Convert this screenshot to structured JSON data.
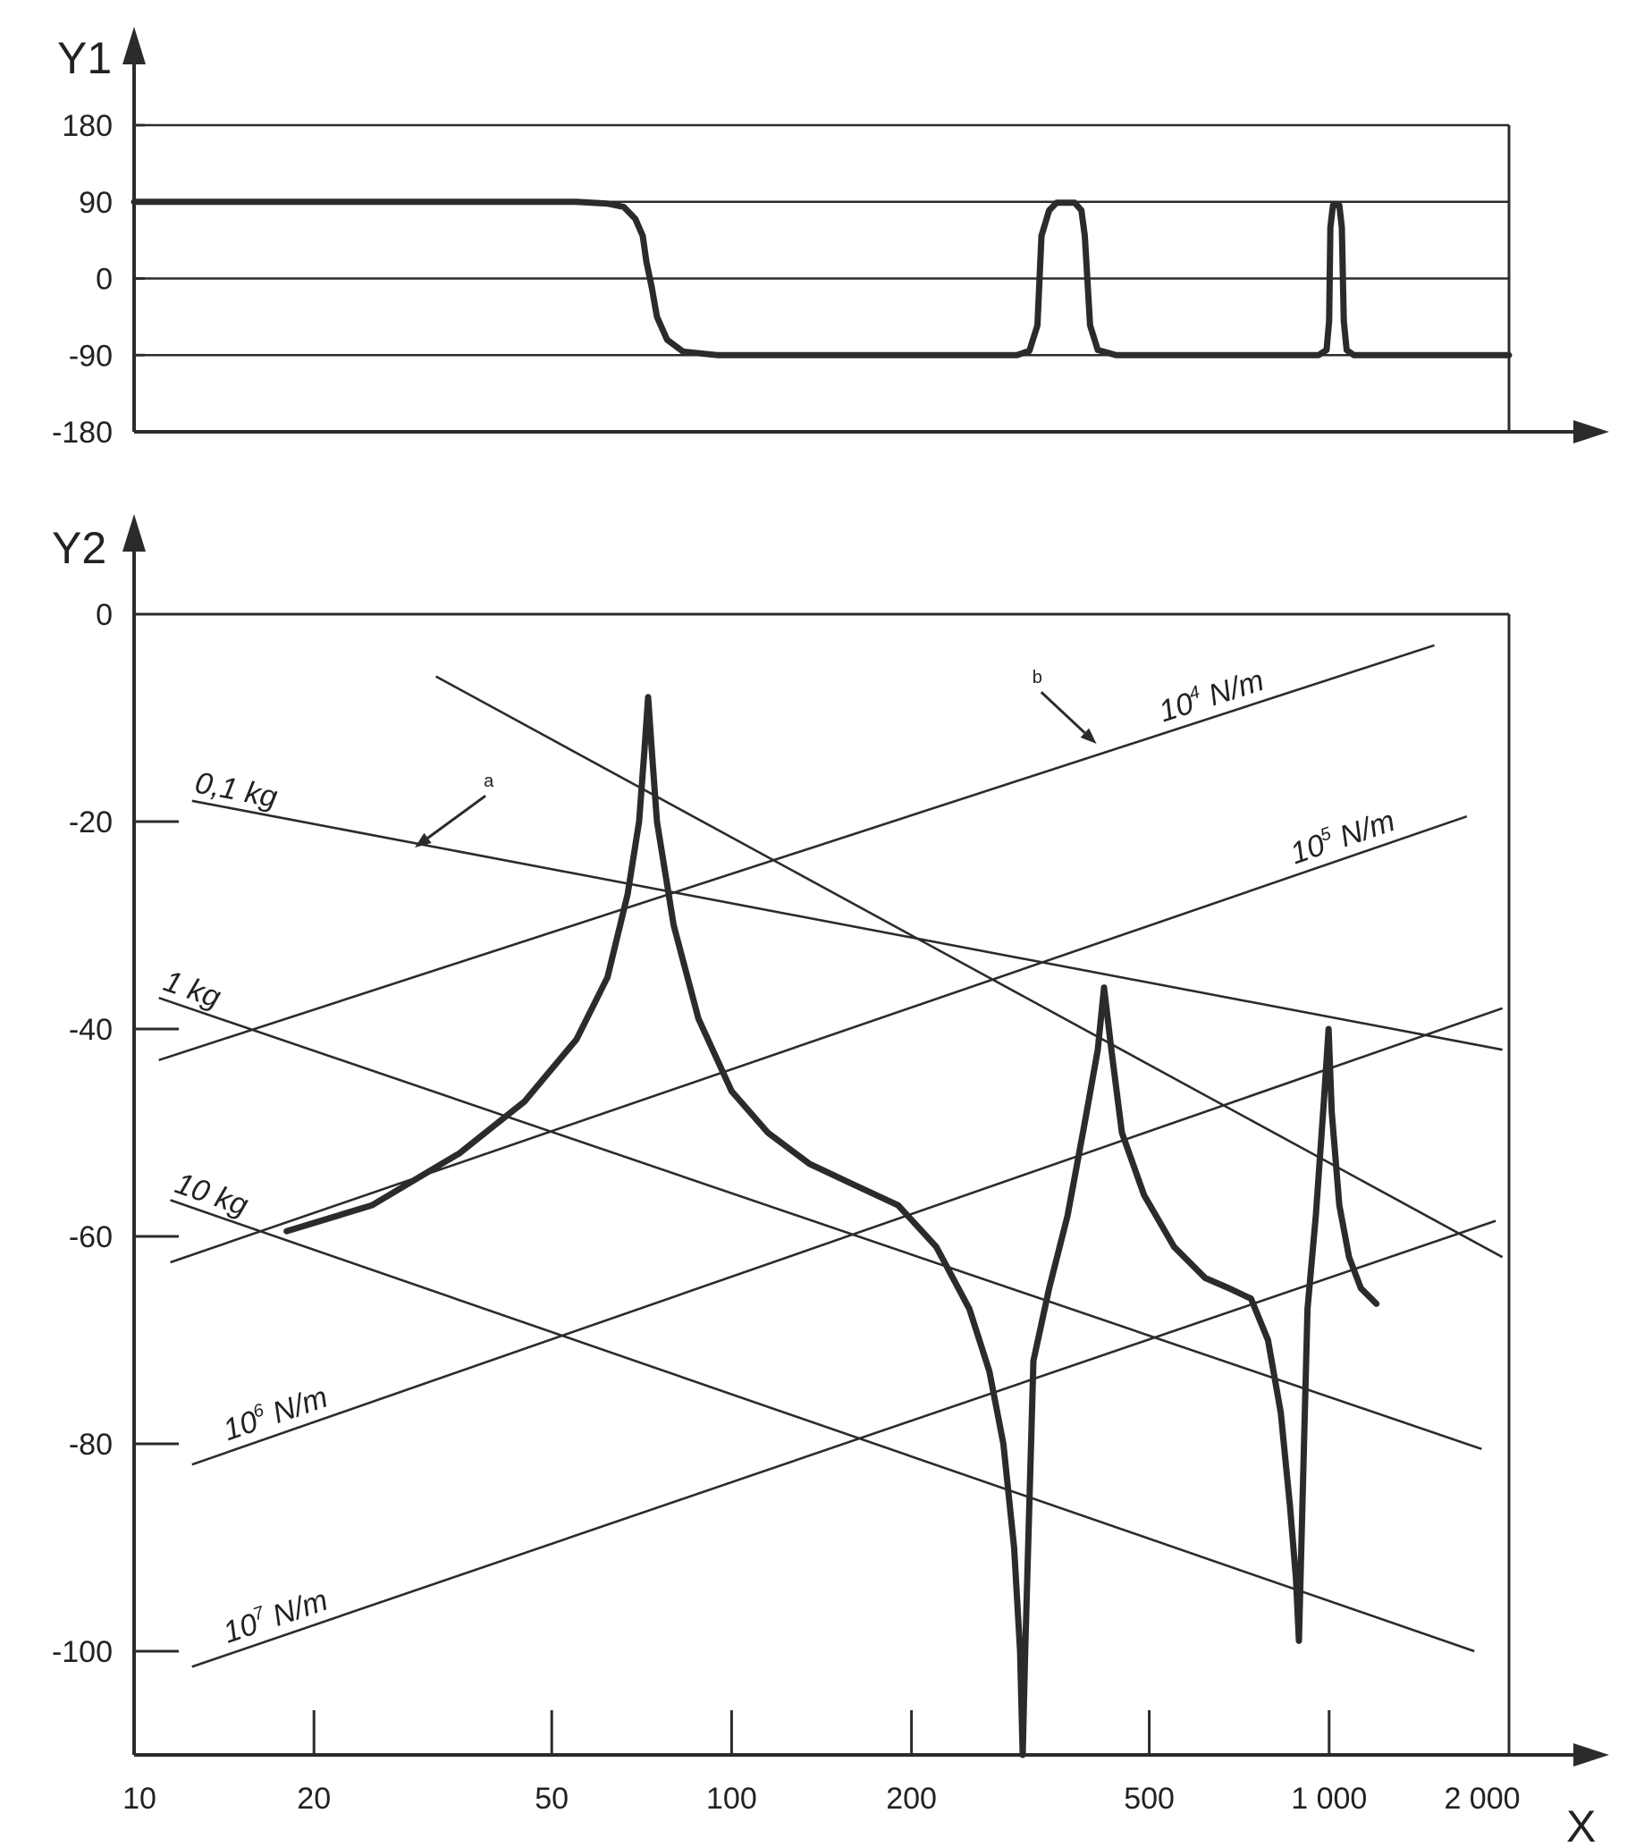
{
  "colors": {
    "ink": "#2b2b2b",
    "background": "#ffffff"
  },
  "chart_data": [
    {
      "id": "phase",
      "type": "line",
      "ylabel": "Y1",
      "xscale": "log",
      "xlim": [
        10,
        2000
      ],
      "ylim": [
        -180,
        180
      ],
      "yticks": [
        180,
        90,
        0,
        -90,
        -180
      ],
      "ytick_labels": [
        "180",
        "90",
        "0",
        "-90",
        "-180"
      ],
      "grid": "horizontal",
      "series": [
        {
          "points": [
            [
              10,
              90
            ],
            [
              55,
              90
            ],
            [
              62,
              88
            ],
            [
              66,
              84
            ],
            [
              69,
              70
            ],
            [
              71,
              50
            ],
            [
              72,
              20
            ],
            [
              73.5,
              -10
            ],
            [
              75,
              -45
            ],
            [
              78,
              -72
            ],
            [
              83,
              -86
            ],
            [
              95,
              -90
            ],
            [
              300,
              -90
            ],
            [
              315,
              -85
            ],
            [
              325,
              -55
            ],
            [
              330,
              50
            ],
            [
              340,
              80
            ],
            [
              350,
              89
            ],
            [
              375,
              89
            ],
            [
              385,
              80
            ],
            [
              390,
              50
            ],
            [
              398,
              -55
            ],
            [
              410,
              -84
            ],
            [
              440,
              -90
            ],
            [
              960,
              -90
            ],
            [
              990,
              -84
            ],
            [
              1000,
              -50
            ],
            [
              1005,
              60
            ],
            [
              1015,
              86
            ],
            [
              1040,
              86
            ],
            [
              1050,
              60
            ],
            [
              1058,
              -50
            ],
            [
              1070,
              -84
            ],
            [
              1100,
              -90
            ],
            [
              2000,
              -90
            ]
          ]
        }
      ]
    },
    {
      "id": "magnitude",
      "type": "line",
      "ylabel": "Y2",
      "xlabel": "X",
      "xscale": "log",
      "xlim": [
        10,
        2000
      ],
      "ylim": [
        -110,
        0
      ],
      "xticks": [
        10,
        20,
        50,
        100,
        200,
        500,
        1000,
        2000
      ],
      "xtick_labels": [
        "10",
        "20",
        "50",
        "100",
        "200",
        "500",
        "1 000",
        "2 000"
      ],
      "yticks": [
        0,
        -20,
        -40,
        -60,
        -80,
        -100
      ],
      "ytick_labels": [
        "0",
        "-20",
        "-40",
        "-60",
        "-80",
        "-100"
      ],
      "mass_lines": [
        {
          "label": "0,1 kg",
          "from": [
            12.5,
            -18
          ],
          "to": [
            1950,
            -42
          ]
        },
        {
          "label": "1 kg",
          "from": [
            11,
            -37
          ],
          "to": [
            1800,
            -80.5
          ]
        },
        {
          "label": "10 kg",
          "from": [
            11.5,
            -56.5
          ],
          "to": [
            1750,
            -100
          ]
        },
        {
          "label": "",
          "from": [
            32,
            -6
          ],
          "to": [
            1950,
            -62
          ]
        }
      ],
      "stiffness_lines": [
        {
          "label": "10",
          "exponent": "4",
          "unit": "N/m",
          "from": [
            11,
            -43
          ],
          "to": [
            1500,
            -3
          ]
        },
        {
          "label": "10",
          "exponent": "5",
          "unit": "N/m",
          "from": [
            11.5,
            -62.5
          ],
          "to": [
            1700,
            -19.5
          ]
        },
        {
          "label": "10",
          "exponent": "6",
          "unit": "N/m",
          "from": [
            12.5,
            -82
          ],
          "to": [
            1950,
            -38
          ]
        },
        {
          "label": "10",
          "exponent": "7",
          "unit": "N/m",
          "from": [
            12.5,
            -101.5
          ],
          "to": [
            1900,
            -58.5
          ]
        }
      ],
      "annotations": [
        {
          "text": "a",
          "at": [
            39,
            -17
          ],
          "arrow_to": [
            29.5,
            -22.5
          ]
        },
        {
          "text": "b",
          "at": [
            323,
            -7
          ],
          "arrow_to": [
            408,
            -12.5
          ]
        }
      ],
      "series": [
        {
          "points": [
            [
              18,
              -59.5
            ],
            [
              25,
              -57
            ],
            [
              35,
              -52
            ],
            [
              45,
              -47
            ],
            [
              55,
              -41
            ],
            [
              62,
              -35
            ],
            [
              67,
              -27
            ],
            [
              70,
              -20
            ],
            [
              71.5,
              -13
            ],
            [
              72.5,
              -8
            ],
            [
              73.5,
              -13
            ],
            [
              75,
              -20
            ],
            [
              80,
              -30
            ],
            [
              88,
              -39
            ],
            [
              100,
              -46
            ],
            [
              115,
              -50
            ],
            [
              135,
              -53
            ],
            [
              160,
              -55
            ],
            [
              190,
              -57
            ],
            [
              220,
              -61
            ],
            [
              250,
              -67
            ],
            [
              270,
              -73
            ],
            [
              285,
              -80
            ],
            [
              297,
              -90
            ],
            [
              304,
              -100
            ],
            [
              307,
              -110
            ],
            [
              310,
              -100
            ],
            [
              320,
              -72
            ],
            [
              340,
              -65
            ],
            [
              365,
              -58
            ],
            [
              390,
              -49
            ],
            [
              410,
              -42
            ],
            [
              420,
              -36
            ],
            [
              432,
              -42
            ],
            [
              450,
              -50
            ],
            [
              490,
              -56
            ],
            [
              550,
              -61
            ],
            [
              620,
              -64
            ],
            [
              680,
              -65
            ],
            [
              740,
              -66
            ],
            [
              790,
              -70
            ],
            [
              830,
              -77
            ],
            [
              860,
              -86
            ],
            [
              880,
              -93
            ],
            [
              890,
              -99
            ],
            [
              903,
              -85
            ],
            [
              920,
              -67
            ],
            [
              950,
              -58
            ],
            [
              980,
              -47
            ],
            [
              998,
              -40
            ],
            [
              1010,
              -48
            ],
            [
              1040,
              -57
            ],
            [
              1080,
              -62
            ],
            [
              1130,
              -65
            ],
            [
              1200,
              -66.5
            ]
          ]
        }
      ]
    }
  ]
}
